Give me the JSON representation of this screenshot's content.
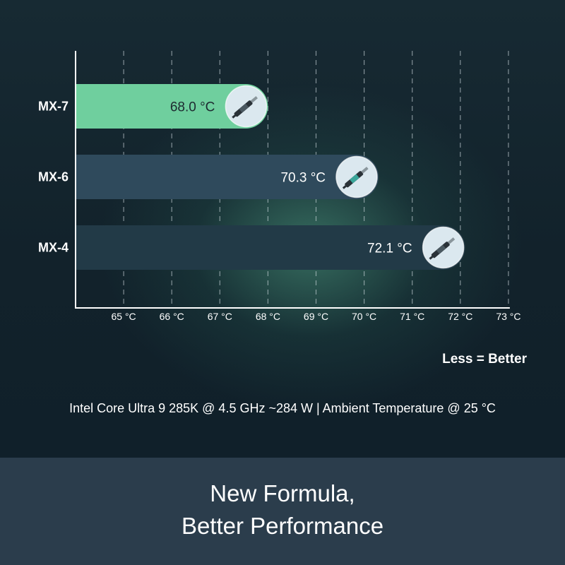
{
  "chart_data": {
    "type": "bar",
    "orientation": "horizontal",
    "categories": [
      "MX-7",
      "MX-6",
      "MX-4"
    ],
    "values": [
      68.0,
      70.3,
      72.1
    ],
    "value_labels": [
      "68.0 °C",
      "70.3 °C",
      "72.1 °C"
    ],
    "x_ticks": [
      65,
      66,
      67,
      68,
      69,
      70,
      71,
      72,
      73
    ],
    "x_tick_labels": [
      "65 °C",
      "66 °C",
      "67 °C",
      "68 °C",
      "69 °C",
      "70 °C",
      "71 °C",
      "72 °C",
      "73 °C"
    ],
    "xlim": [
      64,
      73
    ],
    "grid": "vertical-dashed",
    "bar_colors": [
      "#6fcf9e",
      "#2f4a5c",
      "#223a47"
    ],
    "label_colors": [
      "#1d2a30",
      "#ffffff",
      "#ffffff"
    ],
    "bar_icons": [
      "thermal-paste-syringe-icon",
      "thermal-paste-syringe-icon",
      "thermal-paste-syringe-icon"
    ],
    "icon_badge_color": "#dbe8ef"
  },
  "note": "Less = Better",
  "caption": "Intel Core Ultra 9 285K @ 4.5 GHz ~284 W | Ambient Temperature @ 25 °C",
  "headline": {
    "line1": "New Formula,",
    "line2": "Better Performance"
  },
  "colors": {
    "background": "#12222b",
    "footer": "#2b3d4c",
    "text": "#ffffff",
    "accent": "#6fcf9e"
  }
}
